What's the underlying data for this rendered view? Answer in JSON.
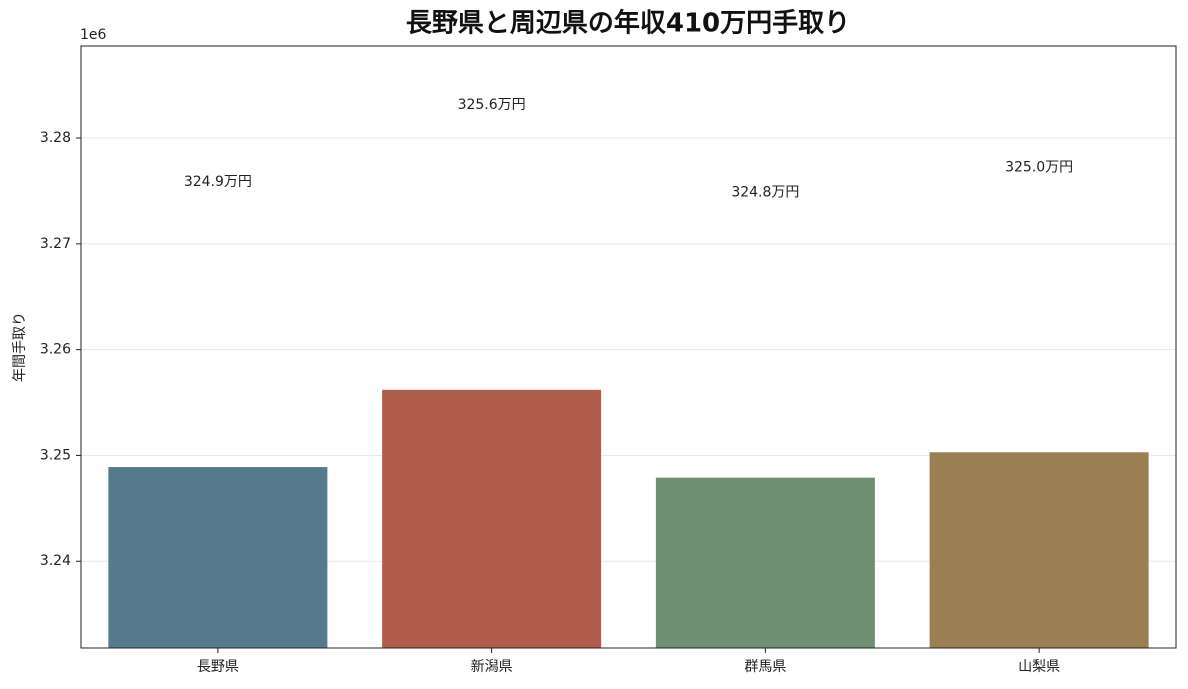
{
  "chart_data": {
    "type": "bar",
    "title": "長野県と周辺県の年収410万円手取り",
    "y_label": "年間手取り",
    "y_offset_label": "1e6",
    "categories": [
      "長野県",
      "新潟県",
      "群馬県",
      "山梨県"
    ],
    "values": [
      3248900,
      3256200,
      3247900,
      3250300
    ],
    "value_labels": [
      "324.9万円",
      "325.6万円",
      "324.8万円",
      "325.0万円"
    ],
    "colors": [
      "#557a8c",
      "#b05c4c",
      "#6f8f72",
      "#9a7f52"
    ],
    "ylim": [
      3231800,
      3288700
    ],
    "yticks": [
      {
        "value": 3240000,
        "label": "3.24"
      },
      {
        "value": 3250000,
        "label": "3.25"
      },
      {
        "value": 3260000,
        "label": "3.26"
      },
      {
        "value": 3270000,
        "label": "3.27"
      },
      {
        "value": 3280000,
        "label": "3.28"
      }
    ],
    "grid": true
  }
}
